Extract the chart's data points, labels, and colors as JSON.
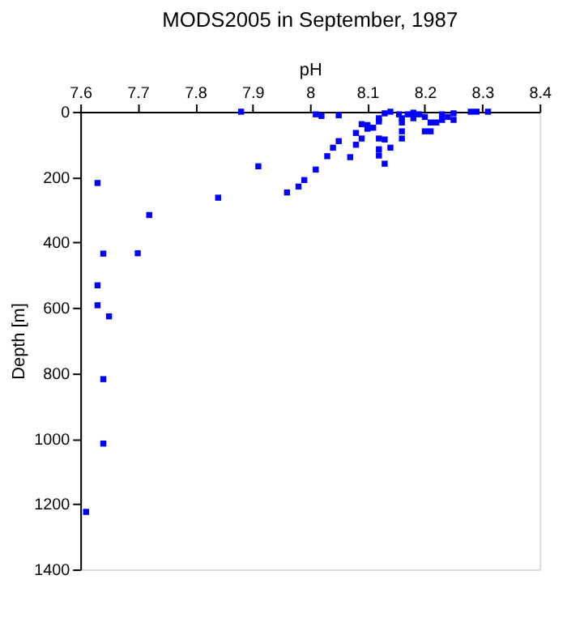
{
  "chart_data": {
    "type": "scatter",
    "title": "MODS2005 in September, 1987",
    "xlabel": "pH",
    "ylabel": "Depth [m]",
    "x": [
      7.88,
      8.01,
      8.02,
      8.05,
      8.12,
      8.12,
      8.13,
      8.14,
      8.155,
      8.16,
      8.16,
      8.17,
      8.18,
      8.18,
      8.19,
      8.2,
      8.2,
      8.21,
      8.21,
      8.22,
      8.23,
      8.23,
      8.24,
      8.25,
      8.25,
      8.28,
      8.29,
      8.31,
      8.09,
      8.1,
      8.11,
      8.1,
      8.08,
      8.09,
      8.08,
      8.12,
      8.12,
      8.12,
      8.13,
      8.14,
      8.13,
      8.16,
      8.16,
      8.05,
      8.04,
      8.03,
      8.07,
      8.01,
      7.91,
      7.99,
      7.98,
      7.96,
      7.84,
      7.63,
      7.64,
      7.63,
      7.63,
      7.65,
      7.64,
      7.64,
      7.61,
      7.7,
      7.72
    ],
    "series": [
      {
        "color": "#0000ff",
        "values": [
          0,
          8,
          13,
          11,
          20,
          30,
          5,
          0,
          8,
          20,
          33,
          8,
          3,
          20,
          8,
          16,
          60,
          60,
          33,
          33,
          8,
          25,
          16,
          25,
          5,
          0,
          0,
          0,
          38,
          41,
          49,
          52,
          65,
          82,
          101,
          82,
          115,
          134,
          85,
          110,
          159,
          60,
          82,
          90,
          110,
          136,
          139,
          177,
          167,
          209,
          229,
          247,
          263,
          218,
          434,
          531,
          592,
          626,
          818,
          1015,
          1224,
          433,
          316
        ]
      }
    ],
    "xlim": [
      7.6,
      8.4
    ],
    "xticks": [
      7.6,
      7.7,
      7.8,
      7.9,
      {
        "value": 8,
        "label": "8"
      },
      8.1,
      8.2,
      8.3,
      8.4
    ],
    "ylim": [
      1400,
      0
    ],
    "yticks": [
      0,
      200,
      400,
      600,
      800,
      1000,
      1200,
      1400
    ],
    "marker": "square",
    "grid": false
  }
}
